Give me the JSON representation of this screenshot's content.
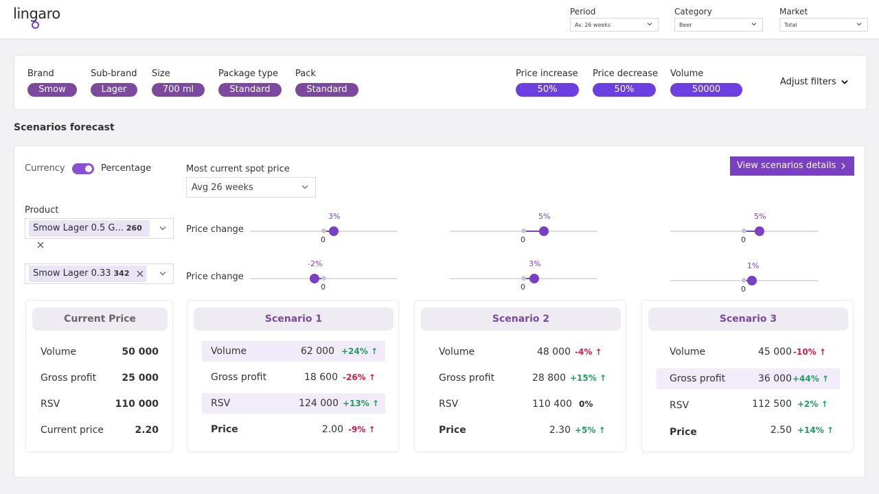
{
  "app": {
    "logo_text": "lingaro"
  },
  "header_filters": [
    {
      "label": "Period",
      "value": "Av. 26 weeks"
    },
    {
      "label": "Category",
      "value": "Beer"
    },
    {
      "label": "Market",
      "value": "Total"
    }
  ],
  "filters": {
    "brand": {
      "label": "Brand",
      "value": "Smow"
    },
    "subbrand": {
      "label": "Sub-brand",
      "value": "Lager"
    },
    "size": {
      "label": "Size",
      "value": "700 ml"
    },
    "package_type": {
      "label": "Package type",
      "value": "Standard"
    },
    "pack": {
      "label": "Pack",
      "value": "Standard"
    },
    "price_increase": {
      "label": "Price increase",
      "value": "50%"
    },
    "price_decrease": {
      "label": "Price decrease",
      "value": "50%"
    },
    "volume": {
      "label": "Volume",
      "value": "50000"
    },
    "adjust_label": "Adjust filters"
  },
  "section_title": "Scenarios forecast",
  "controls": {
    "currency_label": "Currency",
    "percentage_label": "Percentage",
    "toggle_state": "percentage",
    "spot_price_label": "Most current spot price",
    "spot_price_value": "Avg 26 weeks",
    "view_details_label": "View scenarios details",
    "product_label": "Product",
    "price_change_label": "Price change"
  },
  "products": [
    {
      "name": "Smow Lager 0.5 G...",
      "count": "260",
      "slider_labels": [
        "3%",
        "5%",
        "5%"
      ],
      "zero_label": "0"
    },
    {
      "name": "Smow Lager 0.33",
      "count": "342",
      "slider_labels": [
        "-2%",
        "3%",
        "1%"
      ],
      "zero_label": "0"
    }
  ],
  "colors": {
    "accent": "#7a3fc2",
    "pill_dark": "#7b4a9e",
    "pill_bright": "#6b3fe0",
    "positive": "#1e9e5e",
    "negative": "#d01b45"
  },
  "current_price": {
    "title": "Current Price",
    "rows": [
      {
        "label": "Volume",
        "value": "50 000"
      },
      {
        "label": "Gross profit",
        "value": "25 000"
      },
      {
        "label": "RSV",
        "value": "110 000"
      },
      {
        "label": "Current price",
        "value": "2.20"
      }
    ]
  },
  "scenarios": [
    {
      "title": "Scenario 1",
      "rows": [
        {
          "label": "Volume",
          "value": "62 000",
          "delta": "+24%",
          "dir": "pos"
        },
        {
          "label": "Gross profit",
          "value": "18 600",
          "delta": "-26%",
          "dir": "neg"
        },
        {
          "label": "RSV",
          "value": "124 000",
          "delta": "+13%",
          "dir": "pos"
        },
        {
          "label": "Price",
          "value": "2.00",
          "delta": "-9%",
          "dir": "neg"
        }
      ]
    },
    {
      "title": "Scenario  2",
      "rows": [
        {
          "label": "Volume",
          "value": "48 000",
          "delta": "-4%",
          "dir": "neg"
        },
        {
          "label": "Gross profit",
          "value": "28 800",
          "delta": "+15%",
          "dir": "pos"
        },
        {
          "label": "RSV",
          "value": "110 400",
          "delta": "0%",
          "dir": "neu"
        },
        {
          "label": "Price",
          "value": "2.30",
          "delta": "+5%",
          "dir": "pos"
        }
      ]
    },
    {
      "title": "Scenario  3",
      "rows": [
        {
          "label": "Volume",
          "value": "45 000",
          "delta": "-10%",
          "dir": "neg"
        },
        {
          "label": "Gross profit",
          "value": "36 000",
          "delta": "+44%",
          "dir": "pos"
        },
        {
          "label": "RSV",
          "value": "112 500",
          "delta": "+2%",
          "dir": "pos"
        },
        {
          "label": "Price",
          "value": "2.50",
          "delta": "+14%",
          "dir": "pos"
        }
      ]
    }
  ]
}
